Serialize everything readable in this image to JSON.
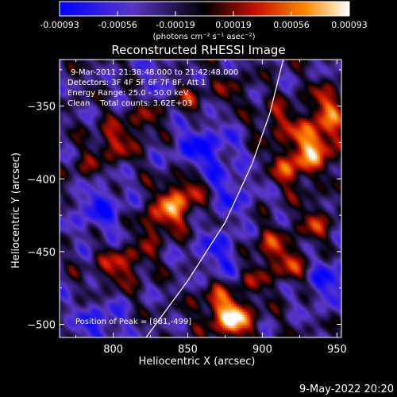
{
  "colorbar": {
    "ticks": [
      "-0.00093",
      "-0.00056",
      "-0.00019",
      "0.00019",
      "0.00056",
      "0.00093"
    ],
    "units_label": "(photons cm⁻² s⁻¹ asec⁻²)",
    "range": [
      -0.00093,
      0.00093
    ]
  },
  "title": "Reconstructed RHESSI Image",
  "info": {
    "time_line": "9-Mar-2011 21:38:48.000 to 21:42:48.000",
    "detectors_line": "Detectors: 3F 4F 5F 6F 7F 8F, Att 1",
    "energy_line": "Energy Range: 25.0 - 50.0 keV",
    "clean_line": "Clean    Total counts: 3.62E+03"
  },
  "peak_label": "Position of Peak = [881,-499]",
  "footer_date": "9-May-2022 20:20",
  "chart_data": {
    "type": "heatmap",
    "title": "Reconstructed RHESSI Image",
    "xlabel": "Heliocentric X (arcsec)",
    "ylabel": "Heliocentric Y (arcsec)",
    "xlim": [
      764,
      953
    ],
    "ylim": [
      -509,
      -318
    ],
    "x_ticks": [
      800,
      850,
      900,
      950
    ],
    "y_ticks": [
      -350,
      -400,
      -450,
      -500
    ],
    "x_tick_labels": [
      "800",
      "850",
      "900",
      "950"
    ],
    "y_tick_labels": [
      "−350",
      "−400",
      "−450",
      "−500"
    ],
    "colormap": "rhessi blue-purple-black-red-yellow-white",
    "color_range": [
      -0.00093,
      0.00093
    ],
    "peak_position": [
      881,
      -499
    ],
    "limb_curve": [
      [
        822,
        -509
      ],
      [
        850,
        -470
      ],
      [
        875,
        -430
      ],
      [
        893,
        -390
      ],
      [
        905,
        -355
      ],
      [
        914,
        -318
      ]
    ],
    "blobs": [
      {
        "x": 881,
        "y": -497,
        "value": 0.00093,
        "sigma": 9
      },
      {
        "x": 870,
        "y": -486,
        "value": 0.0005,
        "sigma": 10
      },
      {
        "x": 936,
        "y": -375,
        "value": 0.00085,
        "sigma": 11
      },
      {
        "x": 920,
        "y": -392,
        "value": 0.0006,
        "sigma": 10
      },
      {
        "x": 945,
        "y": -350,
        "value": 0.0006,
        "sigma": 10
      },
      {
        "x": 910,
        "y": -360,
        "value": 0.00045,
        "sigma": 9
      },
      {
        "x": 840,
        "y": -420,
        "value": 0.0007,
        "sigma": 10
      },
      {
        "x": 850,
        "y": -405,
        "value": 0.0005,
        "sigma": 9
      },
      {
        "x": 826,
        "y": -433,
        "value": 0.0004,
        "sigma": 8
      },
      {
        "x": 800,
        "y": -375,
        "value": 0.00055,
        "sigma": 9
      },
      {
        "x": 820,
        "y": -360,
        "value": 0.0004,
        "sigma": 8
      },
      {
        "x": 780,
        "y": -395,
        "value": 0.0003,
        "sigma": 8
      },
      {
        "x": 800,
        "y": -462,
        "value": 0.00045,
        "sigma": 9
      },
      {
        "x": 815,
        "y": -455,
        "value": 0.00035,
        "sigma": 8
      },
      {
        "x": 905,
        "y": -447,
        "value": 0.0005,
        "sigma": 9
      },
      {
        "x": 920,
        "y": -460,
        "value": 0.00045,
        "sigma": 9
      },
      {
        "x": 895,
        "y": -470,
        "value": 0.0003,
        "sigma": 8
      },
      {
        "x": 936,
        "y": -430,
        "value": 0.00045,
        "sigma": 9
      },
      {
        "x": 850,
        "y": -345,
        "value": 0.00035,
        "sigma": 9
      },
      {
        "x": 880,
        "y": -340,
        "value": 0.0003,
        "sigma": 8
      },
      {
        "x": 860,
        "y": -380,
        "value": -0.0006,
        "sigma": 14
      },
      {
        "x": 790,
        "y": -420,
        "value": -0.0005,
        "sigma": 13
      },
      {
        "x": 870,
        "y": -450,
        "value": -0.00045,
        "sigma": 12
      },
      {
        "x": 880,
        "y": -410,
        "value": -0.0004,
        "sigma": 11
      },
      {
        "x": 945,
        "y": -470,
        "value": -0.0005,
        "sigma": 12
      },
      {
        "x": 790,
        "y": -500,
        "value": -0.00045,
        "sigma": 12
      },
      {
        "x": 830,
        "y": -330,
        "value": -0.0003,
        "sigma": 10
      }
    ]
  }
}
